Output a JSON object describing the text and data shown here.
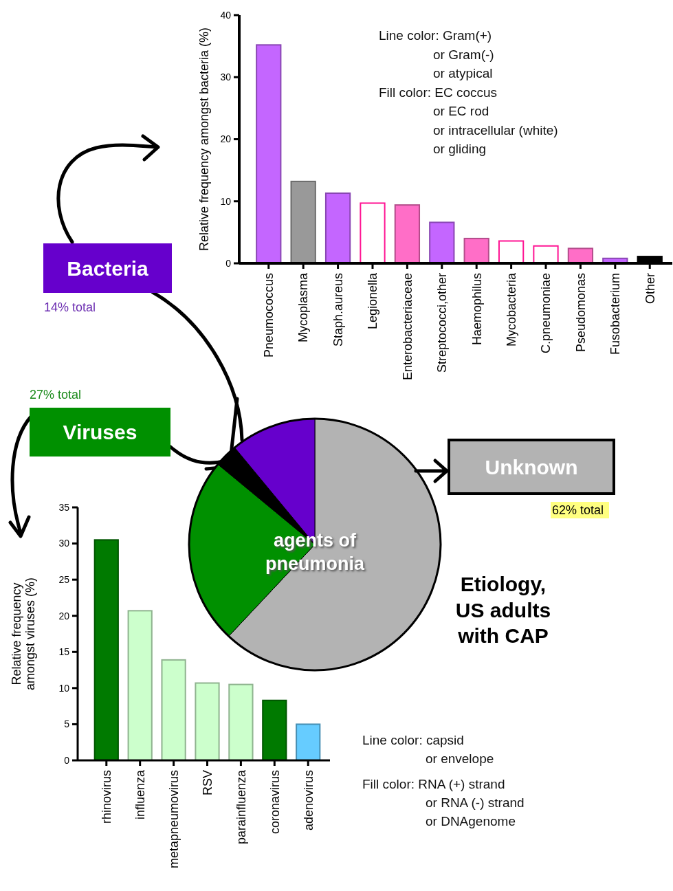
{
  "chart_data": [
    {
      "type": "bar",
      "ylabel": "Relative frequency amongst bacteria (%)",
      "categories": [
        "Pneumococcus",
        "Mycoplasma",
        "Staph.aureus",
        "Legionella",
        "Enterobacteriaceae",
        "Streptococci,other",
        "Haemophilus",
        "Mycobacteria",
        "C.pneumoniae",
        "Pseudomonas",
        "Fusobacterium",
        "Other"
      ],
      "values": [
        35.2,
        13.2,
        11.3,
        9.7,
        9.4,
        6.6,
        4.0,
        3.6,
        2.8,
        2.4,
        0.8,
        1.1
      ],
      "colors": [
        "#c466ff",
        "#999999",
        "#c466ff",
        "#ffffff",
        "#ff6ec7",
        "#c466ff",
        "#ff6ec7",
        "#ffffff",
        "#ffffff",
        "#ff6ec7",
        "#c466ff",
        "#000000"
      ],
      "ylim": [
        0,
        40
      ],
      "yticks": [
        0,
        10,
        20,
        30,
        40
      ],
      "annotations": [
        "Line color: Gram(+)",
        "or Gram(-)",
        "or atypical",
        "Fill color: EC coccus",
        "or EC rod",
        "or intracellular (white)",
        "or gliding"
      ]
    },
    {
      "type": "pie",
      "title": "Etiology, US adults with CAP",
      "categories": [
        "Unknown",
        "Viruses",
        null,
        "Bacteria"
      ],
      "values": [
        62,
        24,
        3,
        11
      ],
      "colors": [
        "#b3b3b3",
        "#009000",
        "#000000",
        "#6600cc"
      ],
      "annotations": [
        "agents of pneumonia",
        "62% total",
        "27% total",
        "14% total"
      ]
    },
    {
      "type": "bar",
      "ylabel": "Relative frequency amongst viruses (%)",
      "categories": [
        "rhinovirus",
        "influenza",
        "metapneumovirus",
        "RSV",
        "parainfluenza",
        "coronavirus",
        "adenovirus"
      ],
      "values": [
        30.5,
        20.7,
        13.9,
        10.7,
        10.5,
        8.3,
        5.0
      ],
      "colors": [
        "#007a00",
        "#ccffcc",
        "#ccffcc",
        "#ccffcc",
        "#ccffcc",
        "#007a00",
        "#66ccff"
      ],
      "ylim": [
        0,
        35
      ],
      "yticks": [
        0,
        5,
        10,
        15,
        20,
        25,
        30,
        35
      ],
      "annotations": [
        "Line color: capsid",
        "or envelope",
        "Fill color: RNA (+) strand",
        "or RNA (-) strand",
        "or DNAgenome"
      ]
    }
  ]
}
